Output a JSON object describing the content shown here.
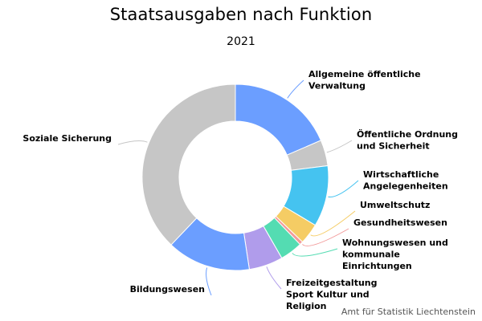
{
  "chart_data": {
    "type": "pie",
    "variant": "donut",
    "title": "Staatsausgaben nach Funktion",
    "subtitle": "2021",
    "slices": [
      {
        "name": "Allgemeine öffentliche Verwaltung",
        "label_lines": [
          "Allgemeine öffentliche",
          "Verwaltung"
        ],
        "value": 18.5,
        "color": "#6b9eff"
      },
      {
        "name": "Öffentliche Ordnung und Sicherheit",
        "label_lines": [
          "Öffentliche Ordnung",
          "und Sicherheit"
        ],
        "value": 4.5,
        "color": "#c6c6c6"
      },
      {
        "name": "Wirtschaftliche Angelegenheiten",
        "label_lines": [
          "Wirtschaftliche",
          "Angelegenheiten"
        ],
        "value": 10.6,
        "color": "#45c3f0"
      },
      {
        "name": "Umweltschutz",
        "label_lines": [
          "Umweltschutz"
        ],
        "value": 3.6,
        "color": "#f5cc64"
      },
      {
        "name": "Gesundheitswesen",
        "label_lines": [
          "Gesundheitswesen"
        ],
        "value": 0.6,
        "color": "#f29a9a"
      },
      {
        "name": "Wohnungswesen und kommunale Einrichtungen",
        "label_lines": [
          "Wohnungswesen und",
          "kommunale",
          "Einrichtungen"
        ],
        "value": 3.9,
        "color": "#54dcb2"
      },
      {
        "name": "Freizeitgestaltung Sport Kultur und Religion",
        "label_lines": [
          "Freizeitgestaltung",
          "Sport Kultur und",
          "Religion"
        ],
        "value": 5.9,
        "color": "#b09ceb"
      },
      {
        "name": "Bildungswesen",
        "label_lines": [
          "Bildungswesen"
        ],
        "value": 14.5,
        "color": "#6b9eff"
      },
      {
        "name": "Soziale Sicherung",
        "label_lines": [
          "Soziale Sicherung"
        ],
        "value": 37.9,
        "color": "#c6c6c6"
      }
    ]
  },
  "credits": "Amt für Statistik Liechtenstein"
}
